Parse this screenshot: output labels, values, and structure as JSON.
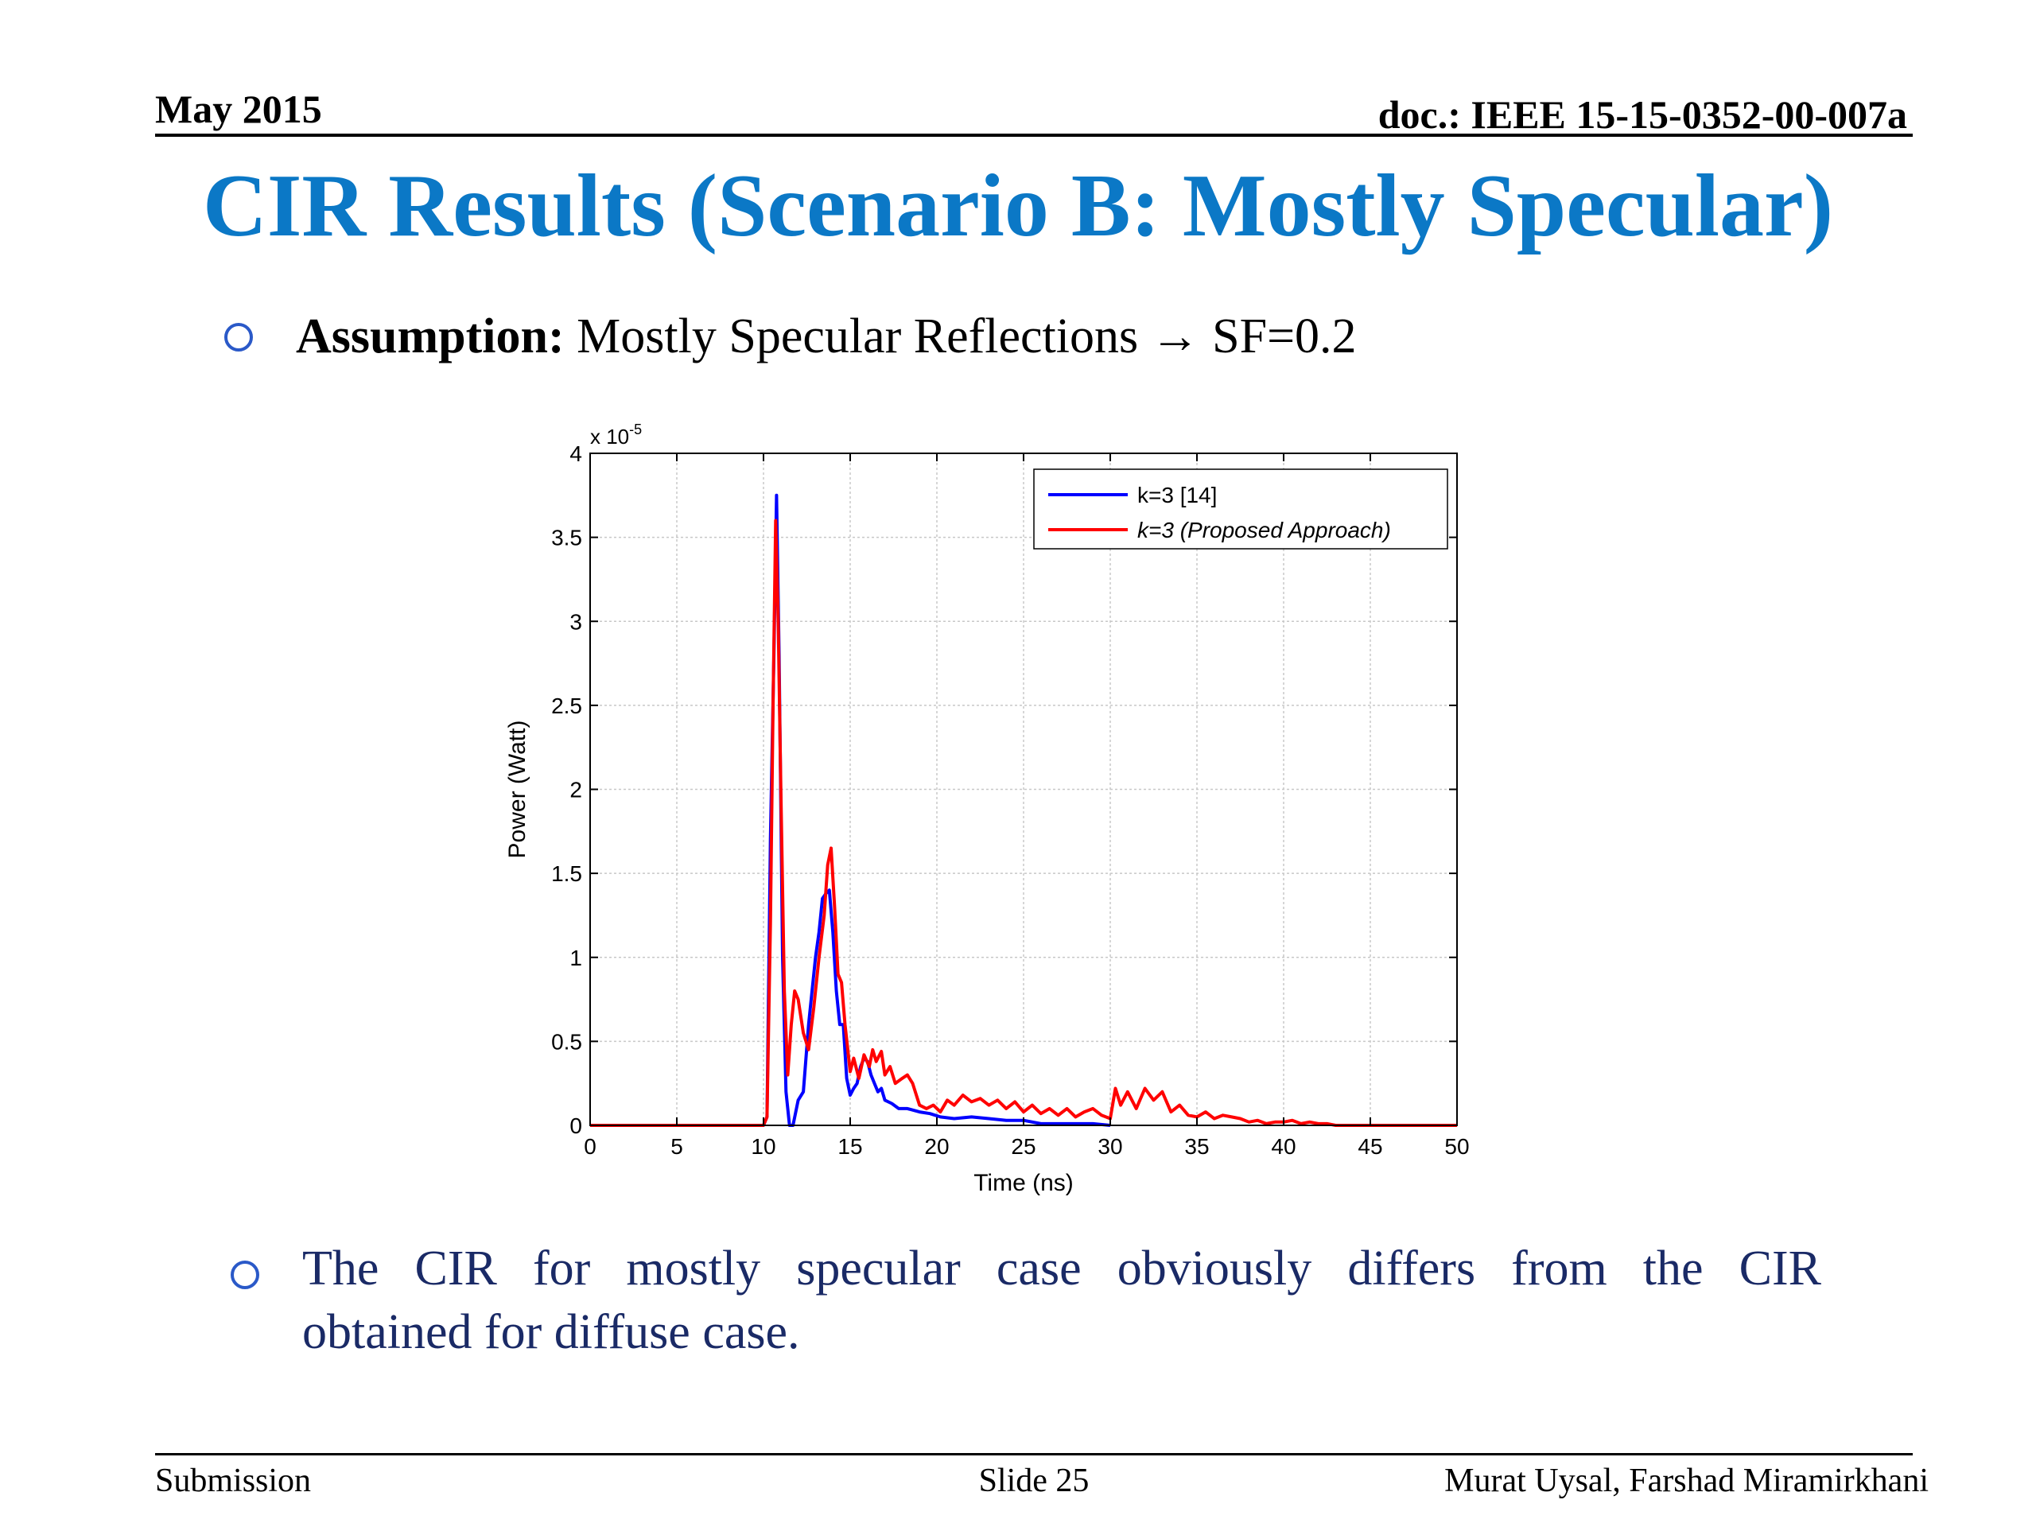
{
  "header": {
    "date": "May 2015",
    "doc_id": "doc.: IEEE 15-15-0352-00-007a"
  },
  "slide_title": "CIR Results (Scenario B: Mostly Specular)",
  "bullet1": {
    "bold": "Assumption:",
    "text": " Mostly Specular Reflections →  SF=0.2"
  },
  "bullet2": {
    "line1": "The CIR for mostly specular case obviously differs from the CIR",
    "line2": "obtained for diffuse case."
  },
  "footer": {
    "left": "Submission",
    "center": "Slide 25",
    "right": "Murat Uysal, Farshad Miramirkhani"
  },
  "chart_data": {
    "type": "line",
    "xlabel": "Time (ns)",
    "ylabel": "Power (Watt)",
    "y_multiplier": "x 10",
    "y_multiplier_exp": "-5",
    "xlim": [
      0,
      50
    ],
    "ylim": [
      0,
      4
    ],
    "x_ticks": [
      0,
      5,
      10,
      15,
      20,
      25,
      30,
      35,
      40,
      45,
      50
    ],
    "y_ticks": [
      0,
      0.5,
      1,
      1.5,
      2,
      2.5,
      3,
      3.5,
      4
    ],
    "grid": true,
    "legend_position": "top-right",
    "series": [
      {
        "name": "k=3 [14]",
        "color": "#0000ff",
        "x": [
          0,
          10,
          10.2,
          10.4,
          10.6,
          10.75,
          10.9,
          11.1,
          11.3,
          11.5,
          11.7,
          12,
          12.3,
          12.6,
          13,
          13.2,
          13.4,
          13.6,
          13.8,
          14,
          14.2,
          14.4,
          14.6,
          14.8,
          15,
          15.2,
          15.4,
          15.6,
          15.8,
          16,
          16.2,
          16.4,
          16.6,
          16.8,
          17,
          17.4,
          17.8,
          18.3,
          19,
          19.6,
          20.2,
          21,
          22,
          23,
          24,
          25,
          26,
          27,
          28,
          29,
          30
        ],
        "y": [
          0,
          0,
          0.05,
          1.7,
          2.8,
          3.75,
          2.8,
          1.0,
          0.2,
          0,
          0,
          0.15,
          0.2,
          0.6,
          1.0,
          1.15,
          1.35,
          1.38,
          1.4,
          1.15,
          0.8,
          0.6,
          0.6,
          0.28,
          0.18,
          0.22,
          0.25,
          0.35,
          0.4,
          0.38,
          0.3,
          0.25,
          0.2,
          0.22,
          0.15,
          0.13,
          0.1,
          0.1,
          0.08,
          0.07,
          0.05,
          0.04,
          0.05,
          0.04,
          0.03,
          0.03,
          0.01,
          0.01,
          0.01,
          0.01,
          0
        ]
      },
      {
        "name": "k=3 (Proposed Approach)",
        "color": "#ff0000",
        "x": [
          0,
          10,
          10.2,
          10.4,
          10.55,
          10.7,
          10.85,
          11,
          11.2,
          11.4,
          11.6,
          11.8,
          12,
          12.3,
          12.6,
          12.9,
          13.2,
          13.5,
          13.7,
          13.9,
          14.1,
          14.3,
          14.5,
          14.7,
          15,
          15.2,
          15.5,
          15.8,
          16.1,
          16.3,
          16.5,
          16.8,
          17,
          17.3,
          17.6,
          18,
          18.3,
          18.6,
          19,
          19.4,
          19.8,
          20.2,
          20.6,
          21,
          21.5,
          22,
          22.5,
          23,
          23.5,
          24,
          24.5,
          25,
          25.5,
          26,
          26.5,
          27,
          27.5,
          28,
          28.5,
          29,
          29.5,
          30,
          30.3,
          30.6,
          31,
          31.5,
          32,
          32.5,
          33,
          33.5,
          34,
          34.5,
          35,
          35.5,
          36,
          36.5,
          37,
          37.5,
          38,
          38.5,
          39,
          39.5,
          40,
          40.5,
          41,
          41.5,
          42,
          42.5,
          43,
          44,
          45,
          46,
          47,
          48,
          49,
          50
        ],
        "y": [
          0,
          0,
          0.05,
          1.2,
          2.5,
          3.6,
          3.0,
          2.0,
          0.8,
          0.3,
          0.6,
          0.8,
          0.75,
          0.55,
          0.45,
          0.7,
          1.0,
          1.25,
          1.55,
          1.65,
          1.3,
          0.9,
          0.85,
          0.6,
          0.32,
          0.4,
          0.28,
          0.42,
          0.35,
          0.45,
          0.38,
          0.44,
          0.3,
          0.35,
          0.25,
          0.28,
          0.3,
          0.25,
          0.12,
          0.1,
          0.12,
          0.08,
          0.15,
          0.12,
          0.18,
          0.14,
          0.16,
          0.12,
          0.15,
          0.1,
          0.14,
          0.08,
          0.12,
          0.07,
          0.1,
          0.06,
          0.1,
          0.05,
          0.08,
          0.1,
          0.06,
          0.04,
          0.22,
          0.12,
          0.2,
          0.1,
          0.22,
          0.15,
          0.2,
          0.08,
          0.12,
          0.06,
          0.05,
          0.08,
          0.04,
          0.06,
          0.05,
          0.04,
          0.02,
          0.03,
          0.01,
          0.02,
          0.02,
          0.03,
          0.01,
          0.02,
          0.01,
          0.01,
          0,
          0,
          0,
          0,
          0,
          0,
          0,
          0
        ]
      }
    ]
  }
}
